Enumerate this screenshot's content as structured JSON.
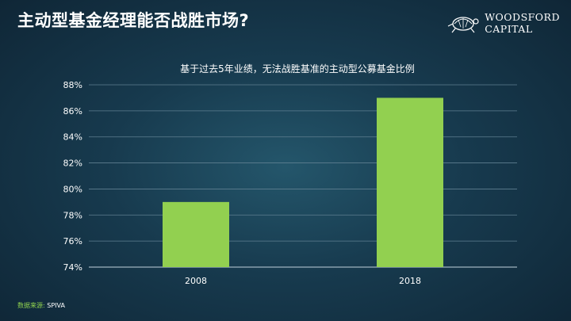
{
  "slide": {
    "title": "主动型基金经理能否战胜市场?",
    "logo_line1": "WOODSFORD",
    "logo_line2": "CAPITAL",
    "logo_icon": "turtle-icon",
    "source_label": "数据来源:",
    "source_value": "SPIVA"
  },
  "colors": {
    "bar": "#92d050",
    "grid": "#5f7f91",
    "text": "#ffffff"
  },
  "chart_data": {
    "type": "bar",
    "title": "基于过去5年业绩，无法战胜基准的主动型公募基金比例",
    "xlabel": "",
    "ylabel": "",
    "categories": [
      "2008",
      "2018"
    ],
    "values": [
      79,
      87
    ],
    "ylim": [
      74,
      88
    ],
    "yticks": [
      74,
      76,
      78,
      80,
      82,
      84,
      86,
      88
    ],
    "ytick_labels": [
      "74%",
      "76%",
      "78%",
      "80%",
      "82%",
      "84%",
      "86%",
      "88%"
    ],
    "grid": true,
    "legend": "none"
  }
}
